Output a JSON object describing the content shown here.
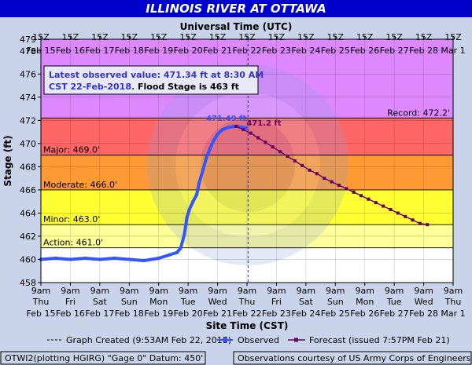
{
  "title": "ILLINOIS RIVER AT OTTAWA",
  "top_axis_title": "Universal Time (UTC)",
  "bottom_axis_title": "Site Time (CST)",
  "y_axis_title": "Stage (ft)",
  "info_box": {
    "line1": "Latest observed value: 471.34 ft at 8:30 AM",
    "line2_blue": "CST 22-Feb-2018.",
    "line2_black": " Flood Stage is 463 ft"
  },
  "legend": {
    "graph_created": "Graph Created (9:53AM Feb 22, 2018)",
    "observed": "Observed",
    "forecast": "Forecast (issued 7:57PM Feb 21)"
  },
  "footer": {
    "datum": "OTWI2(plotting HGIRG) \"Gage 0\" Datum: 450'",
    "courtesy": "Observations courtesy of US Army Corps of Engineers"
  },
  "colors": {
    "background": "#c9d3e9",
    "title_bar": "#0000cc",
    "record_zone": "#dd88ff",
    "major_zone": "#ff6666",
    "moderate_zone": "#ff9933",
    "minor_zone": "#ffff33",
    "action_zone": "#ffff99",
    "observed": "#3355ff",
    "forecast": "#660066"
  },
  "chart_data": {
    "type": "line",
    "title": "ILLINOIS RIVER AT OTTAWA",
    "xlabel": "Site Time (CST)",
    "ylabel": "Stage (ft)",
    "ylim": [
      458,
      479
    ],
    "xlim": [
      "2018-02-15 09:00",
      "2018-03-01 09:00"
    ],
    "y_ticks": [
      458,
      460,
      462,
      464,
      466,
      468,
      470,
      472,
      474,
      476,
      478,
      479
    ],
    "bottom_ticks": [
      {
        "time": "9am",
        "day": "Thu",
        "date": "Feb 15"
      },
      {
        "time": "9am",
        "day": "Fri",
        "date": "Feb 16"
      },
      {
        "time": "9am",
        "day": "Sat",
        "date": "Feb 17"
      },
      {
        "time": "9am",
        "day": "Sun",
        "date": "Feb 18"
      },
      {
        "time": "9am",
        "day": "Mon",
        "date": "Feb 19"
      },
      {
        "time": "9am",
        "day": "Tue",
        "date": "Feb 20"
      },
      {
        "time": "9am",
        "day": "Wed",
        "date": "Feb 21"
      },
      {
        "time": "9am",
        "day": "Thu",
        "date": "Feb 22"
      },
      {
        "time": "9am",
        "day": "Fri",
        "date": "Feb 23"
      },
      {
        "time": "9am",
        "day": "Sat",
        "date": "Feb 24"
      },
      {
        "time": "9am",
        "day": "Sun",
        "date": "Feb 25"
      },
      {
        "time": "9am",
        "day": "Mon",
        "date": "Feb 26"
      },
      {
        "time": "9am",
        "day": "Tue",
        "date": "Feb 27"
      },
      {
        "time": "9am",
        "day": "Wed",
        "date": "Feb 28"
      },
      {
        "time": "9am",
        "day": "Thu",
        "date": "Mar 1"
      }
    ],
    "top_ticks": [
      {
        "time": "15Z",
        "date": "Feb 15"
      },
      {
        "time": "15Z",
        "date": "Feb 16"
      },
      {
        "time": "15Z",
        "date": "Feb 17"
      },
      {
        "time": "15Z",
        "date": "Feb 18"
      },
      {
        "time": "15Z",
        "date": "Feb 19"
      },
      {
        "time": "15Z",
        "date": "Feb 20"
      },
      {
        "time": "15Z",
        "date": "Feb 21"
      },
      {
        "time": "15Z",
        "date": "Feb 22"
      },
      {
        "time": "15Z",
        "date": "Feb 23"
      },
      {
        "time": "15Z",
        "date": "Feb 24"
      },
      {
        "time": "15Z",
        "date": "Feb 25"
      },
      {
        "time": "15Z",
        "date": "Feb 26"
      },
      {
        "time": "15Z",
        "date": "Feb 27"
      },
      {
        "time": "15Z",
        "date": "Feb 28"
      },
      {
        "time": "15Z",
        "date": "Mar 1"
      }
    ],
    "stage_thresholds": [
      {
        "name": "Action",
        "label": "Action: 461.0'",
        "value": 461.0
      },
      {
        "name": "Minor",
        "label": "Minor: 463.0'",
        "value": 463.0
      },
      {
        "name": "Moderate",
        "label": "Moderate: 466.0'",
        "value": 466.0
      },
      {
        "name": "Major",
        "label": "Major: 469.0'",
        "value": 469.0
      },
      {
        "name": "Record",
        "label": "Record: 472.2'",
        "value": 472.2
      }
    ],
    "peak_observed_label": "471.49 ft",
    "forecast_crest_label": "471.2 ft",
    "graph_created_time": "2018-02-22 09:53",
    "series": [
      {
        "name": "Observed",
        "style": "line-dots",
        "points": [
          [
            "2018-02-15 09:00",
            460.0
          ],
          [
            "2018-02-15 21:00",
            460.1
          ],
          [
            "2018-02-16 09:00",
            460.0
          ],
          [
            "2018-02-16 21:00",
            460.1
          ],
          [
            "2018-02-17 09:00",
            460.0
          ],
          [
            "2018-02-17 21:00",
            460.1
          ],
          [
            "2018-02-18 09:00",
            460.0
          ],
          [
            "2018-02-18 21:00",
            459.9
          ],
          [
            "2018-02-19 09:00",
            460.1
          ],
          [
            "2018-02-19 18:00",
            460.4
          ],
          [
            "2018-02-20 00:00",
            460.6
          ],
          [
            "2018-02-20 03:00",
            461.0
          ],
          [
            "2018-02-20 06:00",
            462.2
          ],
          [
            "2018-02-20 08:00",
            463.6
          ],
          [
            "2018-02-20 10:00",
            464.3
          ],
          [
            "2018-02-20 13:00",
            465.0
          ],
          [
            "2018-02-20 16:00",
            465.6
          ],
          [
            "2018-02-20 18:00",
            466.6
          ],
          [
            "2018-02-20 21:00",
            467.7
          ],
          [
            "2018-02-21 00:00",
            468.8
          ],
          [
            "2018-02-21 03:00",
            469.6
          ],
          [
            "2018-02-21 06:00",
            470.3
          ],
          [
            "2018-02-21 09:00",
            470.8
          ],
          [
            "2018-02-21 13:00",
            471.2
          ],
          [
            "2018-02-21 18:00",
            471.4
          ],
          [
            "2018-02-22 00:00",
            471.49
          ],
          [
            "2018-02-22 08:30",
            471.34
          ]
        ]
      },
      {
        "name": "Forecast (issued 7:57PM Feb 21)",
        "style": "line-squares",
        "points": [
          [
            "2018-02-22 00:00",
            471.49
          ],
          [
            "2018-02-22 06:00",
            471.2
          ],
          [
            "2018-02-22 12:00",
            470.9
          ],
          [
            "2018-02-22 18:00",
            470.5
          ],
          [
            "2018-02-23 00:00",
            470.1
          ],
          [
            "2018-02-23 06:00",
            469.7
          ],
          [
            "2018-02-23 12:00",
            469.3
          ],
          [
            "2018-02-23 18:00",
            468.9
          ],
          [
            "2018-02-24 00:00",
            468.5
          ],
          [
            "2018-02-24 06:00",
            468.1
          ],
          [
            "2018-02-24 12:00",
            467.7
          ],
          [
            "2018-02-24 18:00",
            467.4
          ],
          [
            "2018-02-25 00:00",
            467.0
          ],
          [
            "2018-02-25 06:00",
            466.7
          ],
          [
            "2018-02-25 12:00",
            466.4
          ],
          [
            "2018-02-25 18:00",
            466.1
          ],
          [
            "2018-02-26 00:00",
            465.8
          ],
          [
            "2018-02-26 06:00",
            465.5
          ],
          [
            "2018-02-26 12:00",
            465.2
          ],
          [
            "2018-02-26 18:00",
            464.9
          ],
          [
            "2018-02-27 00:00",
            464.6
          ],
          [
            "2018-02-27 06:00",
            464.3
          ],
          [
            "2018-02-27 12:00",
            464.0
          ],
          [
            "2018-02-27 18:00",
            463.7
          ],
          [
            "2018-02-28 00:00",
            463.4
          ],
          [
            "2018-02-28 06:00",
            463.1
          ],
          [
            "2018-02-28 12:00",
            463.0
          ]
        ]
      }
    ]
  }
}
